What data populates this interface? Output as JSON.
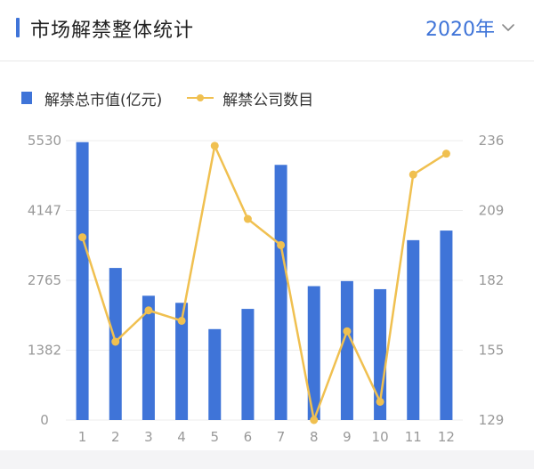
{
  "header": {
    "title": "市场解禁整体统计",
    "year": "2020年"
  },
  "icons": {
    "year_dropdown": "chevron-down-icon"
  },
  "colors": {
    "accent": "#3f74d8",
    "bar": "#3f74d8",
    "line": "#f0c050"
  },
  "chart_data": {
    "type": "bar",
    "categories": [
      "1",
      "2",
      "3",
      "4",
      "5",
      "6",
      "7",
      "8",
      "9",
      "10",
      "11",
      "12"
    ],
    "series": [
      {
        "name": "解禁总市值(亿元)",
        "type": "bar",
        "axis": "left",
        "values": [
          5500,
          3010,
          2460,
          2320,
          1800,
          2200,
          5050,
          2650,
          2750,
          2590,
          3560,
          3750
        ]
      },
      {
        "name": "解禁公司数目",
        "type": "line",
        "axis": "right",
        "values": [
          199,
          159,
          171,
          167,
          234,
          206,
          196,
          129,
          163,
          136,
          223,
          231
        ]
      }
    ],
    "y_left": {
      "ticks": [
        "5530",
        "4147",
        "2765",
        "1382",
        "0"
      ],
      "range": [
        0,
        5530
      ]
    },
    "y_right": {
      "ticks": [
        "236",
        "209",
        "182",
        "155",
        "129"
      ],
      "range": [
        129,
        236
      ]
    },
    "grid": true,
    "legend_position": "top-left"
  }
}
